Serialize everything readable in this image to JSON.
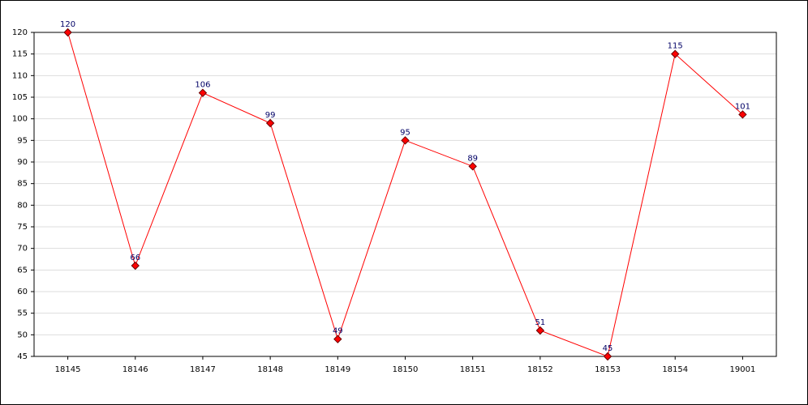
{
  "chart_data": {
    "type": "line",
    "categories": [
      "18145",
      "18146",
      "18147",
      "18148",
      "18149",
      "18150",
      "18151",
      "18152",
      "18153",
      "18154",
      "19001"
    ],
    "values": [
      120,
      66,
      106,
      99,
      49,
      95,
      89,
      51,
      45,
      115,
      101
    ],
    "color": "#ff0000",
    "ylim": [
      45,
      120
    ],
    "yticks": [
      45,
      50,
      55,
      60,
      65,
      70,
      75,
      80,
      85,
      90,
      95,
      100,
      105,
      110,
      115,
      120
    ],
    "grid": true
  }
}
